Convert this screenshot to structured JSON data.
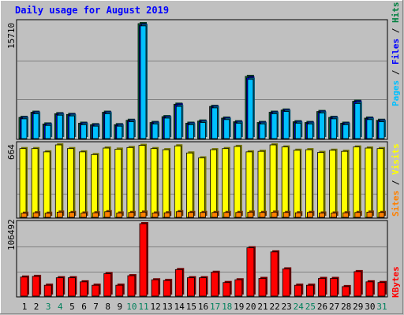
{
  "chart_data": [
    {
      "type": "bar",
      "panel": "hits-files-pages",
      "title": "Daily usage for August 2019",
      "ymax_label": "15710",
      "side_label": {
        "pages": "Pages",
        "sep1": " / ",
        "files": "Files",
        "sep2": " / ",
        "hits": "Hits"
      },
      "categories": [
        "1",
        "2",
        "3",
        "4",
        "5",
        "6",
        "7",
        "8",
        "9",
        "10",
        "11",
        "12",
        "13",
        "14",
        "15",
        "16",
        "17",
        "18",
        "19",
        "20",
        "21",
        "22",
        "23",
        "24",
        "25",
        "26",
        "27",
        "28",
        "29",
        "30",
        "31"
      ],
      "weekend_days": [
        "3",
        "4",
        "10",
        "11",
        "17",
        "18",
        "24",
        "25",
        "31"
      ],
      "series": [
        {
          "name": "Hits",
          "color": "#008040",
          "values": [
            2900,
            3600,
            2000,
            3400,
            3300,
            2100,
            1900,
            3600,
            1900,
            2500,
            15710,
            2200,
            3000,
            4700,
            2100,
            2400,
            4400,
            2800,
            2300,
            8500,
            2200,
            3600,
            3900,
            2300,
            2200,
            3700,
            2900,
            2100,
            5100,
            2800,
            2500
          ]
        },
        {
          "name": "Files",
          "color": "#0000ff",
          "values": [
            2800,
            3500,
            1900,
            3300,
            3200,
            2000,
            1800,
            3500,
            1800,
            2400,
            15500,
            2100,
            2900,
            4600,
            2000,
            2300,
            4300,
            2700,
            2200,
            8300,
            2100,
            3500,
            3800,
            2200,
            2100,
            3600,
            2800,
            2000,
            5000,
            2700,
            2400
          ]
        },
        {
          "name": "Pages",
          "color": "#00c0ff",
          "values": [
            2700,
            3400,
            1800,
            3200,
            3100,
            1900,
            1700,
            3400,
            1700,
            2300,
            15400,
            2000,
            2800,
            4400,
            1900,
            2200,
            4200,
            2600,
            2100,
            8100,
            2000,
            3400,
            3700,
            2100,
            2000,
            3500,
            2700,
            1900,
            4800,
            2600,
            2300
          ]
        }
      ]
    },
    {
      "type": "bar",
      "panel": "visits-sites",
      "ymax_label": "664",
      "side_label": {
        "sites": "Sites",
        "sep1": " / ",
        "visits": "Visits"
      },
      "series": [
        {
          "name": "Visits",
          "color": "#ffff00",
          "values": [
            630,
            630,
            600,
            664,
            630,
            600,
            575,
            635,
            625,
            640,
            660,
            630,
            620,
            655,
            590,
            545,
            620,
            630,
            650,
            600,
            605,
            664,
            645,
            615,
            620,
            595,
            615,
            605,
            645,
            635,
            630
          ]
        },
        {
          "name": "Sites",
          "color": "#ff8000",
          "values": [
            38,
            42,
            38,
            48,
            45,
            40,
            42,
            52,
            40,
            45,
            48,
            40,
            42,
            52,
            45,
            45,
            45,
            45,
            45,
            48,
            45,
            48,
            45,
            42,
            45,
            40,
            40,
            42,
            45,
            48,
            45
          ]
        }
      ]
    },
    {
      "type": "bar",
      "panel": "kbytes",
      "ymax_label": "106492",
      "side_label": {
        "kbytes": "KBytes"
      },
      "series": [
        {
          "name": "KBytes",
          "color": "#ff0000",
          "values": [
            28000,
            29000,
            16000,
            27000,
            27000,
            21000,
            16000,
            33000,
            16000,
            30000,
            106492,
            24000,
            23000,
            39000,
            27000,
            27000,
            35000,
            20000,
            24000,
            71000,
            26000,
            65000,
            40000,
            16000,
            16000,
            26000,
            26000,
            14000,
            36000,
            21000,
            20000
          ]
        }
      ]
    }
  ]
}
